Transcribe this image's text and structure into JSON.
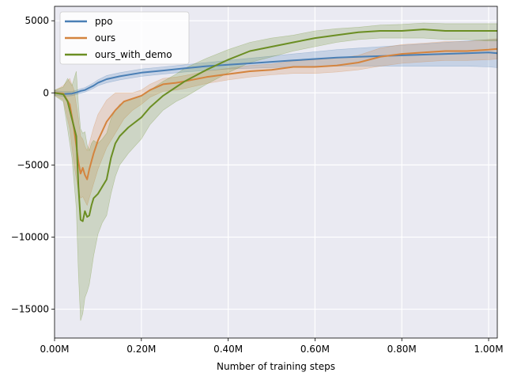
{
  "chart_data": {
    "type": "line",
    "title": "",
    "xlabel": "Number of training steps",
    "ylabel": "",
    "xlim": [
      0,
      1020000
    ],
    "ylim": [
      -17000,
      6000
    ],
    "x_ticks": [
      0,
      200000,
      400000,
      600000,
      800000,
      1000000
    ],
    "x_tick_labels": [
      "0.00M",
      "0.20M",
      "0.40M",
      "0.60M",
      "0.80M",
      "1.00M"
    ],
    "y_ticks": [
      -15000,
      -10000,
      -5000,
      0,
      5000
    ],
    "y_tick_labels": [
      "−15000",
      "−10000",
      "−5000",
      "0",
      "5000"
    ],
    "grid": true,
    "legend_position": "top-left",
    "series": [
      {
        "name": "ppo",
        "color": "#4a7fb5",
        "x": [
          0,
          20000,
          40000,
          50000,
          60000,
          70000,
          80000,
          90000,
          100000,
          120000,
          150000,
          200000,
          250000,
          300000,
          350000,
          400000,
          450000,
          500000,
          550000,
          600000,
          650000,
          700000,
          750000,
          800000,
          850000,
          900000,
          950000,
          1000000,
          1020000
        ],
        "y": [
          0,
          -80,
          -50,
          30,
          130,
          200,
          350,
          500,
          700,
          950,
          1150,
          1400,
          1550,
          1700,
          1850,
          1950,
          2050,
          2150,
          2250,
          2350,
          2450,
          2500,
          2550,
          2600,
          2650,
          2700,
          2750,
          2800,
          2750
        ],
        "lower": [
          -150,
          -250,
          -200,
          -120,
          -20,
          50,
          180,
          320,
          500,
          700,
          900,
          1150,
          1300,
          1450,
          1550,
          1650,
          1700,
          1750,
          1800,
          1850,
          1850,
          1850,
          1850,
          1850,
          1850,
          1850,
          1850,
          1800,
          1750
        ],
        "upper": [
          150,
          100,
          100,
          180,
          280,
          360,
          520,
          700,
          900,
          1200,
          1400,
          1650,
          1800,
          1950,
          2100,
          2250,
          2400,
          2550,
          2700,
          2850,
          3000,
          3100,
          3200,
          3300,
          3400,
          3500,
          3600,
          3700,
          3700
        ]
      },
      {
        "name": "ours",
        "color": "#d4843e",
        "x": [
          0,
          20000,
          35000,
          45000,
          55000,
          60000,
          65000,
          70000,
          75000,
          80000,
          90000,
          100000,
          120000,
          140000,
          160000,
          180000,
          200000,
          220000,
          250000,
          280000,
          300000,
          350000,
          400000,
          450000,
          500000,
          550000,
          600000,
          650000,
          700000,
          750000,
          800000,
          850000,
          900000,
          950000,
          1000000,
          1020000
        ],
        "y": [
          0,
          -50,
          -800,
          -2500,
          -4800,
          -5600,
          -5200,
          -5700,
          -6000,
          -5300,
          -4200,
          -3300,
          -2000,
          -1200,
          -600,
          -400,
          -200,
          200,
          600,
          700,
          800,
          1100,
          1300,
          1500,
          1600,
          1800,
          1800,
          1900,
          2100,
          2500,
          2700,
          2800,
          2900,
          2900,
          3000,
          3050
        ],
        "lower": [
          -150,
          -500,
          -2500,
          -5000,
          -6800,
          -7300,
          -7200,
          -7500,
          -7800,
          -7300,
          -6300,
          -5300,
          -3800,
          -2800,
          -1800,
          -1200,
          -800,
          -300,
          100,
          200,
          300,
          650,
          900,
          1100,
          1250,
          1350,
          1350,
          1450,
          1600,
          1850,
          2050,
          2150,
          2250,
          2250,
          2300,
          2350
        ],
        "upper": [
          150,
          500,
          1000,
          200,
          -1800,
          -3000,
          -3200,
          -3700,
          -4000,
          -3500,
          -2400,
          -1500,
          -500,
          0,
          0,
          0,
          200,
          600,
          1000,
          1100,
          1200,
          1500,
          1700,
          1900,
          2000,
          2200,
          2300,
          2400,
          2600,
          3100,
          3350,
          3450,
          3550,
          3550,
          3700,
          3750
        ]
      },
      {
        "name": "ours_with_demo",
        "color": "#6b8e23",
        "x": [
          0,
          20000,
          30000,
          40000,
          50000,
          55000,
          60000,
          65000,
          70000,
          75000,
          80000,
          85000,
          90000,
          100000,
          110000,
          120000,
          130000,
          140000,
          150000,
          170000,
          200000,
          220000,
          250000,
          280000,
          300000,
          350000,
          400000,
          450000,
          500000,
          550000,
          600000,
          650000,
          700000,
          750000,
          800000,
          850000,
          900000,
          950000,
          1000000,
          1020000
        ],
        "y": [
          0,
          -100,
          -600,
          -1800,
          -3000,
          -6500,
          -8800,
          -8900,
          -8200,
          -8600,
          -8500,
          -7800,
          -7300,
          -7000,
          -6500,
          -6000,
          -4500,
          -3500,
          -3000,
          -2400,
          -1700,
          -1000,
          -200,
          400,
          800,
          1600,
          2300,
          2900,
          3200,
          3500,
          3800,
          4000,
          4200,
          4300,
          4300,
          4400,
          4300,
          4300,
          4300,
          4300
        ],
        "lower": [
          -200,
          -600,
          -2500,
          -4500,
          -8000,
          -12500,
          -15800,
          -15300,
          -14200,
          -13800,
          -13300,
          -12300,
          -11300,
          -9800,
          -9000,
          -8500,
          -7000,
          -5800,
          -5000,
          -4200,
          -3200,
          -2200,
          -1200,
          -600,
          -300,
          600,
          1400,
          2100,
          2500,
          2900,
          3200,
          3500,
          3700,
          3800,
          3800,
          3800,
          3700,
          3700,
          3600,
          3600
        ],
        "upper": [
          200,
          400,
          1000,
          500,
          1500,
          -800,
          -2500,
          -2800,
          -2700,
          -3600,
          -4000,
          -3500,
          -3300,
          -3500,
          -3200,
          -2800,
          -1800,
          -1200,
          -800,
          -500,
          -200,
          200,
          800,
          1300,
          1700,
          2400,
          3000,
          3500,
          3800,
          4000,
          4300,
          4450,
          4550,
          4700,
          4750,
          4850,
          4800,
          4800,
          4800,
          4800
        ]
      }
    ]
  }
}
